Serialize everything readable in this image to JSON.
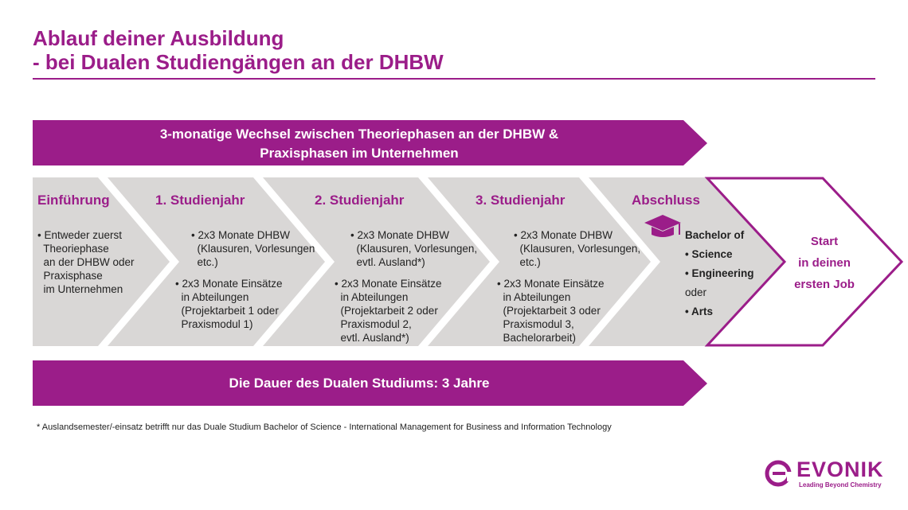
{
  "title": {
    "line1": "Ablauf deiner Ausbildung",
    "line2": "- bei Dualen Studiengängen an der DHBW"
  },
  "top_banner": {
    "line1": "3-monatige Wechsel zwischen Theoriephasen an der DHBW &",
    "line2": "Praxisphasen im Unternehmen"
  },
  "bottom_banner": "Die Dauer des Dualen Studiums: 3 Jahre",
  "phases": [
    {
      "heading": "Einführung",
      "bullets": [
        "• Entweder zuerst\n  Theoriephase\n  an der DHBW oder\n  Praxisphase\n  im Unternehmen"
      ]
    },
    {
      "heading": "1. Studienjahr",
      "bullets": [
        "• 2x3 Monate DHBW\n  (Klausuren, Vorlesungen\n  etc.)",
        "• 2x3 Monate Einsätze\n  in Abteilungen\n  (Projektarbeit 1 oder\n  Praxismodul 1)"
      ]
    },
    {
      "heading": "2. Studienjahr",
      "bullets": [
        "• 2x3 Monate DHBW\n  (Klausuren, Vorlesungen,\n  evtl. Ausland*)",
        "• 2x3 Monate Einsätze\n  in Abteilungen\n  (Projektarbeit 2 oder\n  Praxismodul 2,\n  evtl. Ausland*)"
      ]
    },
    {
      "heading": "3. Studienjahr",
      "bullets": [
        "• 2x3 Monate DHBW\n  (Klausuren, Vorlesungen,\n  etc.)",
        "• 2x3 Monate Einsätze\n  in Abteilungen\n  (Projektarbeit 3 oder\n  Praxismodul 3,\n  Bachelorarbeit)"
      ]
    },
    {
      "heading": "Abschluss",
      "icon": "graduation-cap-icon",
      "degree": [
        "Bachelor of",
        "• Science",
        "• Engineering",
        "oder",
        "• Arts"
      ]
    }
  ],
  "start": {
    "line1": "Start",
    "line2": "in deinen",
    "line3": "ersten Job"
  },
  "footnote": "* Auslandsemester/-einsatz betrifft nur das Duale Studium Bachelor of Science - International Management for Business and Information Technology",
  "logo": {
    "word": "EVONIK",
    "tagline": "Leading Beyond Chemistry"
  },
  "colors": {
    "brand": "#9b1d89",
    "gray": "#d9d7d6"
  }
}
